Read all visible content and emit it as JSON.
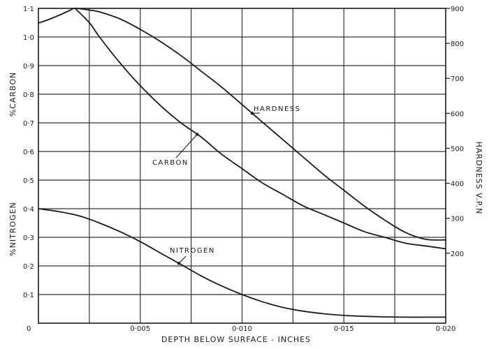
{
  "chart_data": {
    "type": "line",
    "xlabel": "DEPTH BELOW SURFACE - INCHES",
    "ylabel_left_upper": "%CARBON",
    "ylabel_left_lower": "%NITROGEN",
    "ylabel_right": "HARDNESS V.P.N",
    "x_ticks": [
      "0",
      "0·005",
      "0·010",
      "0·015",
      "0·020"
    ],
    "x_tick_values": [
      0,
      0.005,
      0.01,
      0.015,
      0.02
    ],
    "y_left_ticks": [
      "0·1",
      "0·2",
      "0·3",
      "0·4",
      "0·5",
      "0·6",
      "0·7",
      "0·8",
      "0·9",
      "1·0",
      "1·1"
    ],
    "y_left_tick_values": [
      0.1,
      0.2,
      0.3,
      0.4,
      0.5,
      0.6,
      0.7,
      0.8,
      0.9,
      1.0,
      1.1
    ],
    "y_right_ticks": [
      "200",
      "300",
      "400",
      "500",
      "600",
      "700",
      "800",
      "900"
    ],
    "y_right_tick_values": [
      200,
      300,
      400,
      500,
      600,
      700,
      800,
      900
    ],
    "xlim": [
      0,
      0.02
    ],
    "ylim_left": [
      0,
      1.1
    ],
    "ylim_right": [
      0,
      900
    ],
    "grid": true,
    "series": [
      {
        "name": "HARDNESS",
        "axis": "right",
        "x": [
          0,
          0.0005,
          0.001,
          0.0015,
          0.0018,
          0.0025,
          0.003,
          0.004,
          0.005,
          0.006,
          0.007,
          0.008,
          0.009,
          0.01,
          0.011,
          0.012,
          0.013,
          0.014,
          0.015,
          0.016,
          0.017,
          0.018,
          0.019,
          0.02
        ],
        "y": [
          858,
          868,
          880,
          893,
          900,
          895,
          890,
          870,
          840,
          805,
          765,
          720,
          675,
          625,
          575,
          525,
          475,
          425,
          380,
          335,
          295,
          260,
          240,
          238
        ]
      },
      {
        "name": "CARBON",
        "axis": "left",
        "x": [
          0.0018,
          0.0025,
          0.003,
          0.004,
          0.005,
          0.006,
          0.007,
          0.008,
          0.009,
          0.01,
          0.011,
          0.012,
          0.013,
          0.014,
          0.015,
          0.016,
          0.017,
          0.018,
          0.019,
          0.02
        ],
        "y": [
          1.1,
          1.05,
          1.0,
          0.91,
          0.83,
          0.76,
          0.7,
          0.65,
          0.59,
          0.54,
          0.49,
          0.45,
          0.41,
          0.38,
          0.35,
          0.32,
          0.3,
          0.28,
          0.27,
          0.26
        ]
      },
      {
        "name": "NITROGEN",
        "axis": "left",
        "x": [
          0,
          0.001,
          0.002,
          0.003,
          0.004,
          0.005,
          0.006,
          0.007,
          0.008,
          0.009,
          0.01,
          0.011,
          0.012,
          0.013,
          0.014,
          0.015,
          0.016,
          0.017,
          0.018,
          0.019,
          0.02
        ],
        "y": [
          0.4,
          0.39,
          0.375,
          0.35,
          0.32,
          0.285,
          0.245,
          0.205,
          0.165,
          0.13,
          0.1,
          0.075,
          0.055,
          0.042,
          0.033,
          0.027,
          0.024,
          0.022,
          0.021,
          0.021,
          0.021
        ]
      }
    ],
    "annotations": [
      {
        "text": "HARDNESS",
        "series": "HARDNESS",
        "x": 0.0105
      },
      {
        "text": "CARBON",
        "series": "CARBON",
        "x": 0.0078
      },
      {
        "text": "NITROGEN",
        "series": "NITROGEN",
        "x": 0.0069
      }
    ]
  }
}
